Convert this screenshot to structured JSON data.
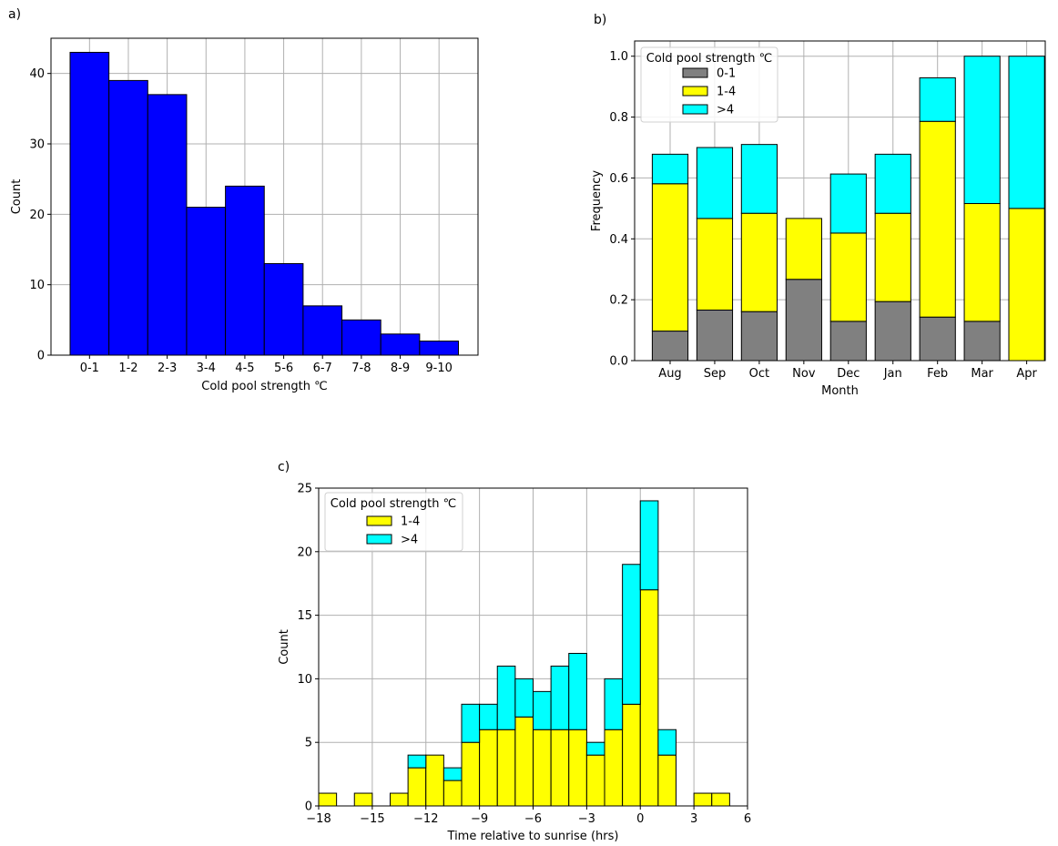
{
  "chart_data": [
    {
      "panel_label": "a)",
      "type": "bar",
      "categories": [
        "0-1",
        "1-2",
        "2-3",
        "3-4",
        "4-5",
        "5-6",
        "6-7",
        "7-8",
        "8-9",
        "9-10"
      ],
      "values": [
        43,
        39,
        37,
        21,
        24,
        13,
        7,
        5,
        3,
        2
      ],
      "xlabel": "Cold pool strength ℃",
      "ylabel": "Count",
      "ylim": [
        0,
        45
      ],
      "yticks": [
        0,
        10,
        20,
        30,
        40
      ],
      "grid": true,
      "colors": {
        "bar": "#0000ff",
        "edge": "#000000"
      }
    },
    {
      "panel_label": "b)",
      "type": "bar",
      "stacked": true,
      "categories": [
        "Aug",
        "Sep",
        "Oct",
        "Nov",
        "Dec",
        "Jan",
        "Feb",
        "Mar",
        "Apr"
      ],
      "series": [
        {
          "name": "0-1",
          "color": "#808080",
          "values": [
            0.097,
            0.166,
            0.161,
            0.267,
            0.129,
            0.194,
            0.143,
            0.129,
            0.0
          ]
        },
        {
          "name": "1-4",
          "color": "#ffff00",
          "values": [
            0.484,
            0.301,
            0.323,
            0.2,
            0.29,
            0.29,
            0.643,
            0.387,
            0.5
          ]
        },
        {
          "name": ">4",
          "color": "#00ffff",
          "values": [
            0.097,
            0.233,
            0.226,
            0.0,
            0.194,
            0.194,
            0.143,
            0.484,
            0.5
          ]
        }
      ],
      "legend_title": "Cold pool strength ℃",
      "legend_position": "upper-left",
      "xlabel": "Month",
      "ylabel": "Frequency",
      "ylim": [
        0,
        1.05
      ],
      "yticks": [
        "0.0",
        "0.2",
        "0.4",
        "0.6",
        "0.8",
        "1.0"
      ],
      "grid": true
    },
    {
      "panel_label": "c)",
      "type": "bar",
      "stacked": true,
      "bin_width_hrs": 1,
      "x": [
        -18,
        -17,
        -16,
        -15,
        -14,
        -13,
        -12,
        -11,
        -10,
        -9,
        -8,
        -7,
        -6,
        -5,
        -4,
        -3,
        -2,
        -1,
        0,
        1,
        2,
        3,
        4,
        5
      ],
      "series": [
        {
          "name": "1-4",
          "color": "#ffff00",
          "values": [
            1,
            0,
            1,
            0,
            1,
            3,
            4,
            2,
            5,
            6,
            6,
            7,
            6,
            6,
            6,
            4,
            6,
            8,
            17,
            4,
            0,
            1,
            1,
            0
          ]
        },
        {
          "name": ">4",
          "color": "#00ffff",
          "values": [
            0,
            0,
            0,
            0,
            0,
            1,
            0,
            1,
            3,
            2,
            5,
            3,
            3,
            5,
            6,
            1,
            4,
            11,
            7,
            2,
            0,
            0,
            0,
            0
          ]
        }
      ],
      "legend_title": "Cold pool strength ℃",
      "legend_position": "upper-left",
      "xlabel": "Time relative to sunrise (hrs)",
      "ylabel": "Count",
      "xlim": [
        -18,
        6
      ],
      "xticks": [
        "−18",
        "−15",
        "−12",
        "−9",
        "−6",
        "−3",
        "0",
        "3",
        "6"
      ],
      "ylim": [
        0,
        25
      ],
      "yticks": [
        0,
        5,
        10,
        15,
        20,
        25
      ],
      "grid": true
    }
  ]
}
